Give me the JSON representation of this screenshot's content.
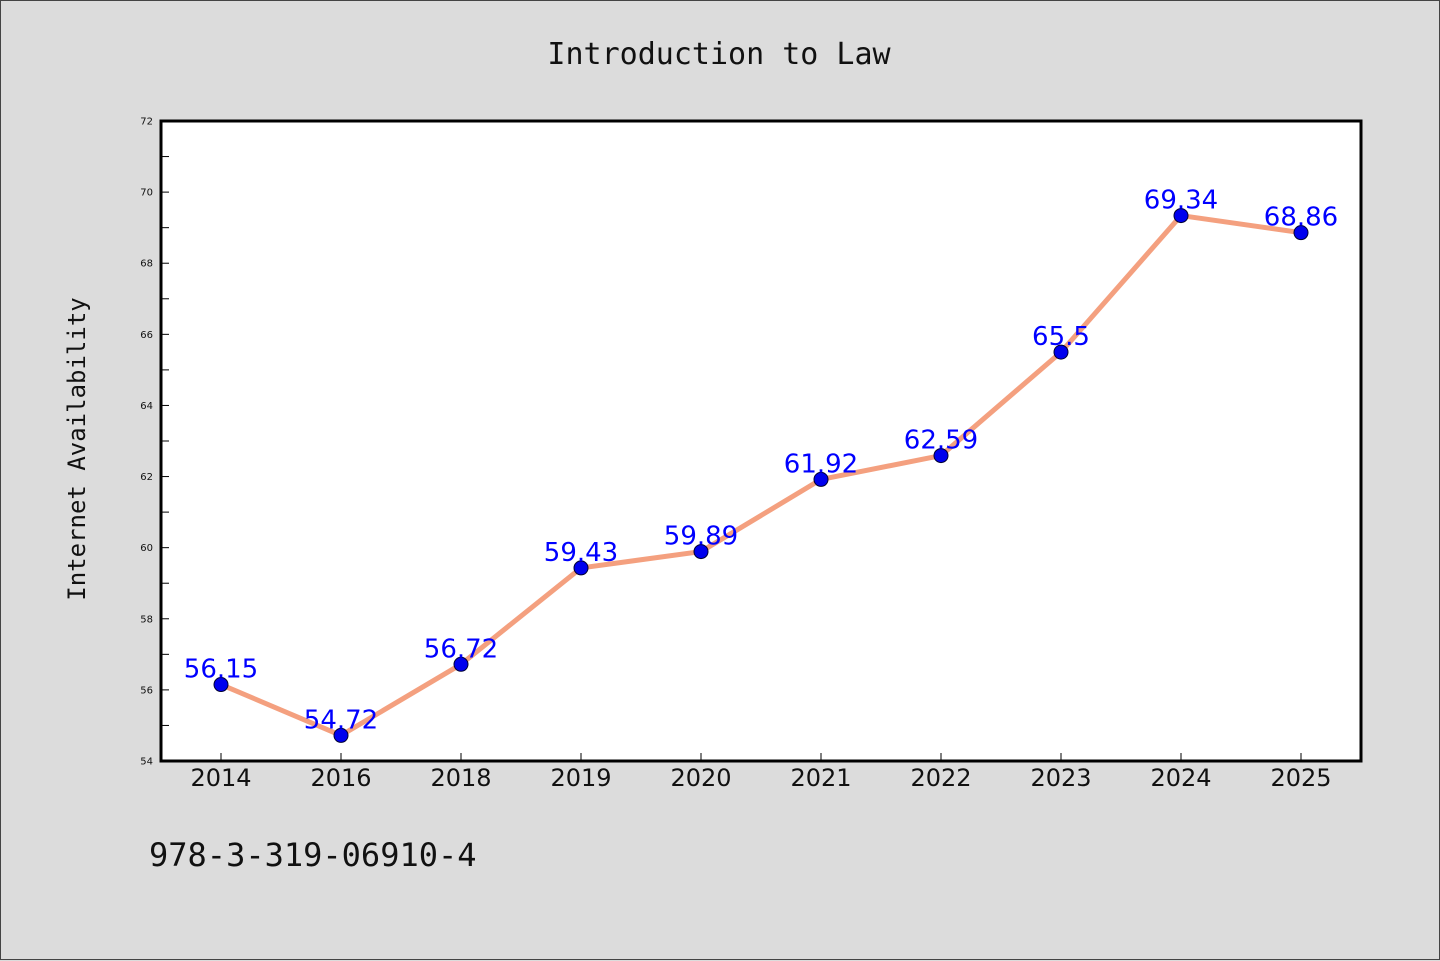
{
  "chart_data": {
    "type": "line",
    "title": "Introduction to Law",
    "xlabel": "",
    "ylabel": "Internet Availability",
    "categories": [
      "2014",
      "2016",
      "2018",
      "2019",
      "2020",
      "2021",
      "2022",
      "2023",
      "2024",
      "2025"
    ],
    "series": [
      {
        "values": [
          56.15,
          54.72,
          56.72,
          59.43,
          59.89,
          61.92,
          62.59,
          65.5,
          69.34,
          68.86
        ],
        "labels": [
          "56.15",
          "54.72",
          "56.72",
          "59.43",
          "59.89",
          "61.92",
          "62.59",
          "65.5",
          "69.34",
          "68.86"
        ]
      }
    ],
    "ylim": [
      54,
      72
    ],
    "yticks": [
      54,
      56,
      58,
      60,
      62,
      64,
      66,
      68,
      70,
      72
    ],
    "grid": false,
    "legend": "none",
    "colors": {
      "line": "#f4a07f",
      "marker": "#0000ee",
      "data_label": "#0000ff",
      "background": "#dcdcdc",
      "plot_background": "#ffffff"
    }
  },
  "footer": {
    "isbn": "978-3-319-06910-4"
  }
}
